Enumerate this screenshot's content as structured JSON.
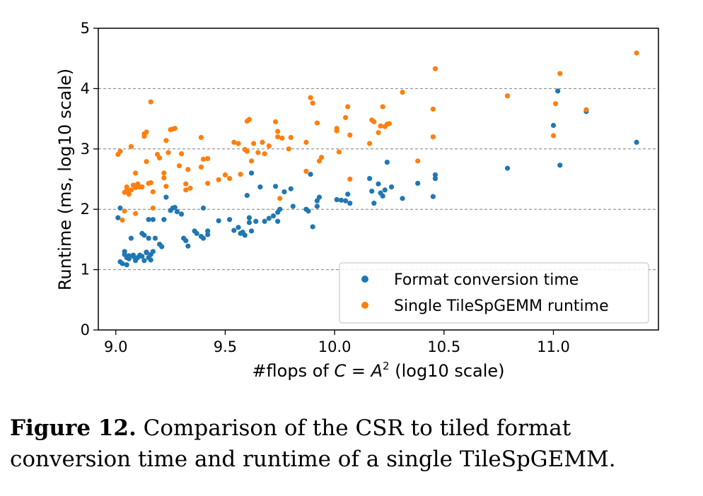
{
  "chart_data": {
    "type": "scatter",
    "xlabel_prefix": "#flops of ",
    "xlabel_math_c": "C",
    "xlabel_math_eq": " = ",
    "xlabel_math_a": "A",
    "xlabel_math_sup": "2",
    "xlabel_suffix": " (log10 scale)",
    "ylabel": "Runtime (ms, log10 scale)",
    "xlim": [
      8.92,
      11.48
    ],
    "ylim": [
      0,
      5
    ],
    "xticks": [
      "9.0",
      "9.5",
      "10.0",
      "10.5",
      "11.0"
    ],
    "xtick_values": [
      9.0,
      9.5,
      10.0,
      10.5,
      11.0
    ],
    "yticks": [
      "0",
      "1",
      "2",
      "3",
      "4",
      "5"
    ],
    "ytick_values": [
      0,
      1,
      2,
      3,
      4,
      5
    ],
    "grid": "horizontal dashed",
    "legend_position": "bottom-right",
    "colors": {
      "format": "#1f77b4",
      "tile": "#ff7f0e"
    },
    "series": [
      {
        "name": "Format conversion time",
        "color": "#1f77b4",
        "points": [
          [
            9.01,
            1.86
          ],
          [
            9.02,
            2.02
          ],
          [
            9.02,
            1.13
          ],
          [
            9.03,
            1.1
          ],
          [
            9.04,
            1.25
          ],
          [
            9.04,
            1.3
          ],
          [
            9.05,
            1.08
          ],
          [
            9.05,
            1.2
          ],
          [
            9.06,
            1.23
          ],
          [
            9.06,
            1.18
          ],
          [
            9.07,
            1.52
          ],
          [
            9.08,
            1.24
          ],
          [
            9.08,
            1.22
          ],
          [
            9.09,
            1.18
          ],
          [
            9.09,
            1.15
          ],
          [
            9.1,
            1.2
          ],
          [
            9.11,
            1.24
          ],
          [
            9.12,
            1.22
          ],
          [
            9.12,
            1.6
          ],
          [
            9.13,
            1.15
          ],
          [
            9.13,
            1.57
          ],
          [
            9.14,
            1.28
          ],
          [
            9.14,
            1.29
          ],
          [
            9.15,
            1.2
          ],
          [
            9.15,
            1.52
          ],
          [
            9.15,
            1.83
          ],
          [
            9.16,
            1.16
          ],
          [
            9.16,
            1.25
          ],
          [
            9.17,
            1.83
          ],
          [
            9.17,
            1.3
          ],
          [
            9.18,
            1.52
          ],
          [
            9.2,
            1.42
          ],
          [
            9.21,
            1.38
          ],
          [
            9.22,
            1.83
          ],
          [
            9.23,
            2.2
          ],
          [
            9.25,
            1.98
          ],
          [
            9.26,
            2.02
          ],
          [
            9.27,
            2.03
          ],
          [
            9.28,
            1.96
          ],
          [
            9.3,
            1.92
          ],
          [
            9.31,
            1.52
          ],
          [
            9.32,
            1.48
          ],
          [
            9.33,
            1.39
          ],
          [
            9.36,
            1.64
          ],
          [
            9.37,
            1.6
          ],
          [
            9.39,
            1.55
          ],
          [
            9.4,
            1.52
          ],
          [
            9.4,
            2.02
          ],
          [
            9.42,
            1.58
          ],
          [
            9.42,
            1.64
          ],
          [
            9.47,
            1.81
          ],
          [
            9.52,
            1.83
          ],
          [
            9.54,
            1.65
          ],
          [
            9.56,
            1.7
          ],
          [
            9.57,
            1.6
          ],
          [
            9.58,
            1.62
          ],
          [
            9.59,
            1.57
          ],
          [
            9.6,
            2.23
          ],
          [
            9.61,
            1.86
          ],
          [
            9.61,
            1.78
          ],
          [
            9.62,
            1.64
          ],
          [
            9.62,
            2.6
          ],
          [
            9.64,
            1.8
          ],
          [
            9.66,
            2.37
          ],
          [
            9.68,
            1.8
          ],
          [
            9.7,
            1.85
          ],
          [
            9.72,
            1.89
          ],
          [
            9.73,
            2.38
          ],
          [
            9.74,
            1.95
          ],
          [
            9.74,
            1.8
          ],
          [
            9.75,
            2.0
          ],
          [
            9.77,
            2.29
          ],
          [
            9.8,
            2.34
          ],
          [
            9.81,
            2.05
          ],
          [
            9.87,
            2.0
          ],
          [
            9.88,
            1.97
          ],
          [
            9.89,
            2.58
          ],
          [
            9.9,
            1.71
          ],
          [
            9.92,
            2.05
          ],
          [
            9.92,
            2.14
          ],
          [
            9.93,
            2.2
          ],
          [
            10.01,
            2.16
          ],
          [
            10.03,
            2.15
          ],
          [
            10.05,
            2.14
          ],
          [
            10.06,
            2.25
          ],
          [
            10.07,
            2.1
          ],
          [
            10.16,
            2.51
          ],
          [
            10.17,
            2.3
          ],
          [
            10.18,
            2.1
          ],
          [
            10.2,
            2.42
          ],
          [
            10.21,
            2.27
          ],
          [
            10.22,
            2.22
          ],
          [
            10.23,
            2.32
          ],
          [
            10.24,
            2.78
          ],
          [
            10.26,
            2.37
          ],
          [
            10.31,
            2.18
          ],
          [
            10.38,
            2.43
          ],
          [
            10.45,
            2.21
          ],
          [
            10.46,
            2.51
          ],
          [
            10.46,
            2.57
          ],
          [
            10.79,
            2.68
          ],
          [
            11.0,
            3.39
          ],
          [
            11.02,
            3.96
          ],
          [
            11.03,
            2.73
          ],
          [
            11.15,
            3.62
          ],
          [
            11.38,
            3.11
          ]
        ]
      },
      {
        "name": "Single TileSpGEMM runtime",
        "color": "#ff7f0e",
        "points": [
          [
            9.01,
            2.91
          ],
          [
            9.02,
            2.96
          ],
          [
            9.03,
            1.82
          ],
          [
            9.04,
            1.97
          ],
          [
            9.04,
            2.28
          ],
          [
            9.05,
            2.37
          ],
          [
            9.05,
            2.31
          ],
          [
            9.06,
            2.25
          ],
          [
            9.07,
            3.04
          ],
          [
            9.07,
            2.32
          ],
          [
            9.08,
            2.4
          ],
          [
            9.09,
            1.93
          ],
          [
            9.09,
            2.6
          ],
          [
            9.09,
            2.36
          ],
          [
            9.1,
            2.42
          ],
          [
            9.11,
            2.37
          ],
          [
            9.12,
            2.37
          ],
          [
            9.13,
            3.25
          ],
          [
            9.13,
            3.21
          ],
          [
            9.14,
            3.28
          ],
          [
            9.14,
            2.79
          ],
          [
            9.15,
            2.43
          ],
          [
            9.16,
            2.44
          ],
          [
            9.16,
            3.78
          ],
          [
            9.17,
            2.02
          ],
          [
            9.17,
            2.29
          ],
          [
            9.19,
            2.91
          ],
          [
            9.2,
            2.85
          ],
          [
            9.22,
            2.6
          ],
          [
            9.22,
            2.52
          ],
          [
            9.23,
            2.38
          ],
          [
            9.23,
            3.14
          ],
          [
            9.24,
            2.94
          ],
          [
            9.25,
            3.32
          ],
          [
            9.26,
            3.33
          ],
          [
            9.27,
            3.34
          ],
          [
            9.29,
            2.72
          ],
          [
            9.3,
            2.92
          ],
          [
            9.32,
            2.42
          ],
          [
            9.32,
            2.32
          ],
          [
            9.33,
            2.66
          ],
          [
            9.34,
            2.35
          ],
          [
            9.39,
            2.7
          ],
          [
            9.39,
            3.19
          ],
          [
            9.4,
            2.83
          ],
          [
            9.42,
            2.43
          ],
          [
            9.42,
            2.84
          ],
          [
            9.47,
            2.49
          ],
          [
            9.5,
            2.57
          ],
          [
            9.52,
            2.51
          ],
          [
            9.54,
            3.11
          ],
          [
            9.56,
            3.09
          ],
          [
            9.57,
            2.58
          ],
          [
            9.59,
            2.99
          ],
          [
            9.6,
            2.96
          ],
          [
            9.6,
            3.46
          ],
          [
            9.61,
            3.49
          ],
          [
            9.62,
            2.8
          ],
          [
            9.63,
            3.09
          ],
          [
            9.65,
            2.94
          ],
          [
            9.67,
            3.11
          ],
          [
            9.68,
            2.92
          ],
          [
            9.7,
            3.05
          ],
          [
            9.73,
            3.45
          ],
          [
            9.74,
            3.2
          ],
          [
            9.74,
            3.29
          ],
          [
            9.75,
            2.18
          ],
          [
            9.76,
            3.18
          ],
          [
            9.79,
            3.0
          ],
          [
            9.8,
            3.19
          ],
          [
            9.87,
            2.63
          ],
          [
            9.87,
            3.11
          ],
          [
            9.89,
            3.85
          ],
          [
            9.9,
            3.76
          ],
          [
            9.92,
            3.43
          ],
          [
            9.93,
            2.8
          ],
          [
            9.94,
            2.86
          ],
          [
            10.01,
            3.34
          ],
          [
            10.01,
            3.3
          ],
          [
            10.02,
            2.95
          ],
          [
            10.05,
            3.52
          ],
          [
            10.06,
            3.7
          ],
          [
            10.07,
            3.23
          ],
          [
            10.07,
            2.5
          ],
          [
            10.16,
            3.09
          ],
          [
            10.17,
            3.48
          ],
          [
            10.18,
            3.45
          ],
          [
            10.2,
            3.27
          ],
          [
            10.21,
            3.38
          ],
          [
            10.22,
            3.7
          ],
          [
            10.23,
            3.37
          ],
          [
            10.24,
            3.41
          ],
          [
            10.25,
            3.42
          ],
          [
            10.31,
            3.94
          ],
          [
            10.38,
            2.8
          ],
          [
            10.45,
            3.66
          ],
          [
            10.45,
            3.2
          ],
          [
            10.46,
            4.33
          ],
          [
            10.79,
            3.88
          ],
          [
            11.0,
            3.22
          ],
          [
            11.01,
            3.75
          ],
          [
            11.03,
            4.25
          ],
          [
            11.15,
            3.65
          ],
          [
            11.38,
            4.59
          ]
        ]
      }
    ]
  },
  "caption": {
    "label": "Figure 12.",
    "text": " Comparison of the CSR to tiled format conversion time and runtime of a single TileSpGEMM."
  }
}
